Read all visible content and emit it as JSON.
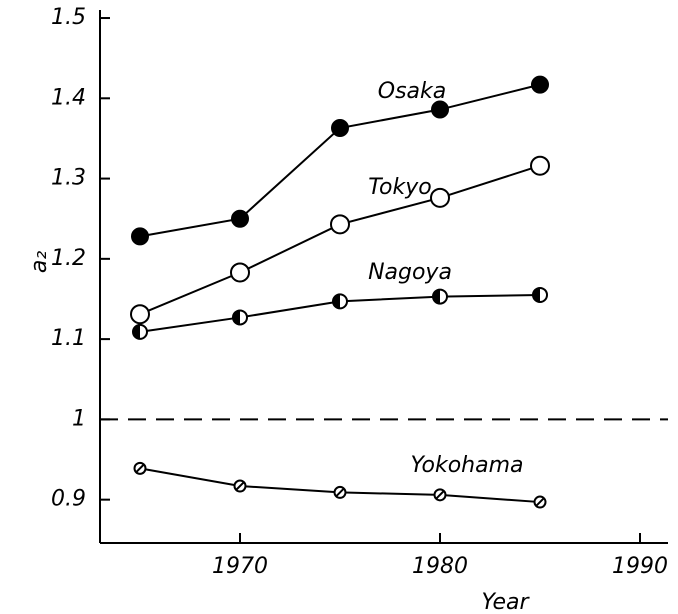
{
  "chart_data": {
    "type": "line",
    "x_label": "Year",
    "y_label": "a₂",
    "x": [
      1965,
      1970,
      1975,
      1980,
      1985
    ],
    "xlim": [
      1963,
      1991.4
    ],
    "xticks": [
      1970,
      1980,
      1990
    ],
    "ylim": [
      0.846,
      1.51
    ],
    "yticks": [
      0.9,
      1,
      1.1,
      1.2,
      1.3,
      1.4,
      1.5
    ],
    "reference_lines": [
      1
    ],
    "series": [
      {
        "name": "Osaka",
        "color": "#000000",
        "marker": "filled",
        "values": [
          1.228,
          1.25,
          1.363,
          1.386,
          1.417
        ]
      },
      {
        "name": "Tokyo",
        "color": "#000000",
        "marker": "open",
        "values": [
          1.131,
          1.183,
          1.243,
          1.276,
          1.316
        ]
      },
      {
        "name": "Nagoya",
        "color": "#000000",
        "marker": "half",
        "values": [
          1.109,
          1.127,
          1.147,
          1.153,
          1.155
        ]
      },
      {
        "name": "Yokohama",
        "color": "#000000",
        "marker": "hatched",
        "values": [
          0.939,
          0.917,
          0.909,
          0.906,
          0.897
        ]
      }
    ]
  }
}
